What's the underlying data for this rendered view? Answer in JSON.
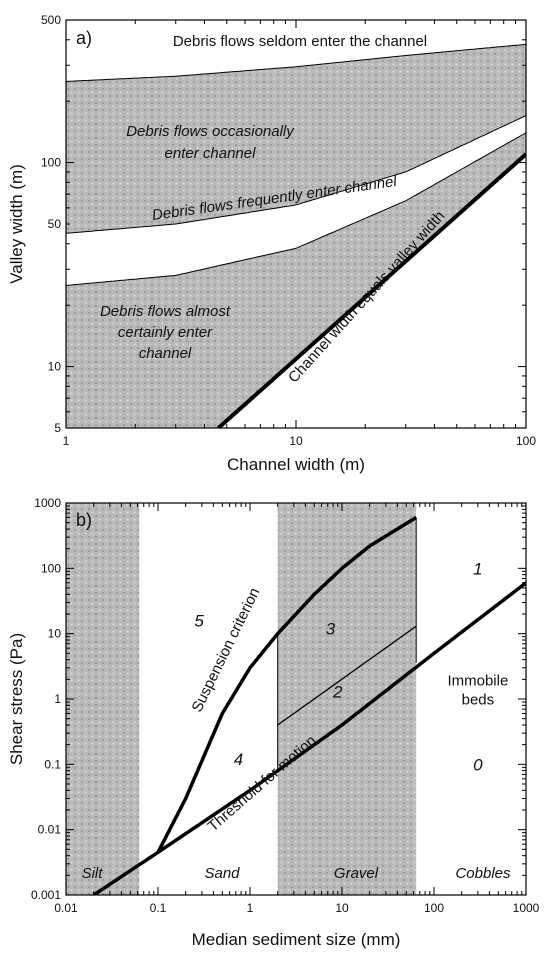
{
  "colors": {
    "shade": "#b9b9b9",
    "line": "#000000",
    "background": "#ffffff"
  },
  "chart_data": [
    {
      "type": "area",
      "panel": "a)",
      "xlabel": "Channel width (m)",
      "ylabel": "Valley width (m)",
      "xscale": "log",
      "yscale": "log",
      "xlim": [
        1,
        100
      ],
      "ylim": [
        5,
        500
      ],
      "xticks": [
        {
          "v": 1,
          "label": "1"
        },
        {
          "v": 10,
          "label": "10"
        },
        {
          "v": 100,
          "label": "100"
        }
      ],
      "yticks": [
        {
          "v": 5,
          "label": "5"
        },
        {
          "v": 10,
          "label": "10"
        },
        {
          "v": 50,
          "label": "50"
        },
        {
          "v": 100,
          "label": "100"
        },
        {
          "v": 500,
          "label": "500"
        }
      ],
      "boundaries": [
        {
          "name": "upper",
          "x": [
            1,
            3,
            10,
            30,
            100
          ],
          "y": [
            250,
            265,
            295,
            335,
            380
          ]
        },
        {
          "name": "middle-top",
          "x": [
            1,
            3,
            10,
            30,
            100
          ],
          "y": [
            45,
            50,
            62,
            90,
            170
          ]
        },
        {
          "name": "middle-bottom",
          "x": [
            1,
            3,
            10,
            30,
            100
          ],
          "y": [
            25,
            28,
            38,
            65,
            140
          ]
        }
      ],
      "line": {
        "name": "Channel width equals valley width",
        "x": [
          4.6,
          100
        ],
        "y": [
          5,
          110
        ]
      },
      "zones": [
        {
          "label": "Debris flows seldom enter the channel",
          "shaded": false
        },
        {
          "label1": "Debris flows occasionally",
          "label2": "enter channel",
          "shaded": true
        },
        {
          "label": "Debris flows frequently enter channel",
          "shaded": false
        },
        {
          "label1": "Debris flows almost",
          "label2": "certainly enter",
          "label3": "channel",
          "shaded": true
        }
      ]
    },
    {
      "type": "line",
      "panel": "b)",
      "xlabel": "Median sediment size (mm)",
      "ylabel": "Shear stress (Pa)",
      "xscale": "log",
      "yscale": "log",
      "xlim": [
        0.01,
        1000
      ],
      "ylim": [
        0.001,
        1000
      ],
      "xticks": [
        {
          "v": 0.01,
          "label": "0.01"
        },
        {
          "v": 0.1,
          "label": "0.1"
        },
        {
          "v": 1,
          "label": "1"
        },
        {
          "v": 10,
          "label": "10"
        },
        {
          "v": 100,
          "label": "100"
        },
        {
          "v": 1000,
          "label": "1000"
        }
      ],
      "yticks": [
        {
          "v": 0.001,
          "label": "0.001"
        },
        {
          "v": 0.01,
          "label": "0.01"
        },
        {
          "v": 0.1,
          "label": "0.1"
        },
        {
          "v": 1,
          "label": "1"
        },
        {
          "v": 10,
          "label": "10"
        },
        {
          "v": 100,
          "label": "100"
        },
        {
          "v": 1000,
          "label": "1000"
        }
      ],
      "shaded_bands": [
        {
          "label": "Silt",
          "x": [
            0.01,
            0.0625
          ]
        },
        {
          "label": "Gravel",
          "x": [
            2,
            64
          ]
        }
      ],
      "unshaded_bands": [
        {
          "label": "Sand",
          "x": [
            0.0625,
            2
          ]
        },
        {
          "label": "Cobbles",
          "x": [
            64,
            1000
          ]
        }
      ],
      "series": [
        {
          "name": "Threshold for motion",
          "x": [
            0.02,
            0.1,
            1,
            10,
            100,
            1000
          ],
          "y": [
            0.001,
            0.0045,
            0.04,
            0.4,
            5,
            60
          ]
        },
        {
          "name": "Suspension criterion",
          "x": [
            0.1,
            0.2,
            0.5,
            1,
            2,
            5,
            10,
            20,
            64
          ],
          "y": [
            0.0045,
            0.03,
            0.6,
            3,
            10,
            40,
            100,
            220,
            600
          ]
        },
        {
          "x": [
            2,
            64
          ],
          "y": [
            0.4,
            13
          ]
        }
      ],
      "zone_numbers": [
        {
          "label": "5",
          "x": 0.28,
          "y": 16
        },
        {
          "label": "4",
          "x": 0.75,
          "y": 0.12
        },
        {
          "label": "3",
          "x": 7.5,
          "y": 12
        },
        {
          "label": "2",
          "x": 9,
          "y": 1.3
        },
        {
          "label": "1",
          "x": 300,
          "y": 100
        },
        {
          "label": "0",
          "x": 300,
          "y": 0.1
        }
      ],
      "annotation": {
        "line1": "Immobile",
        "line2": "beds",
        "x": 300,
        "y": 1.4
      }
    }
  ]
}
